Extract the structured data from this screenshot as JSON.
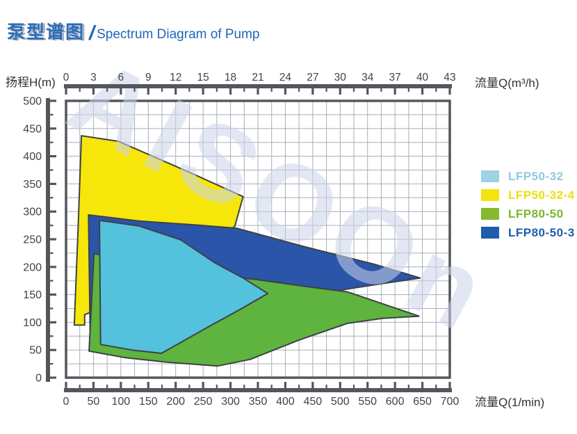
{
  "title": {
    "zh": "泵型谱图",
    "slash": "/",
    "en": "Spectrum Diagram of Pump"
  },
  "axes": {
    "left_label": "扬程H(m)",
    "top_label": "流量Q(m³/h)",
    "bottom_label": "流量Q(1/min)",
    "top_ticks": [
      "0",
      "3",
      "6",
      "9",
      "12",
      "15",
      "18",
      "21",
      "24",
      "27",
      "30",
      "34",
      "37",
      "40",
      "43"
    ],
    "bottom_ticks": [
      "0",
      "50",
      "100",
      "150",
      "200",
      "250",
      "300",
      "350",
      "400",
      "450",
      "500",
      "550",
      "600",
      "650",
      "700"
    ],
    "left_ticks": [
      "500",
      "450",
      "400",
      "350",
      "300",
      "250",
      "200",
      "150",
      "100",
      "50",
      "0"
    ]
  },
  "watermark": {
    "text": "AISOOn",
    "color": "#ccd5ea"
  },
  "legend": {
    "items": [
      {
        "label": "LFP50-32",
        "color": "#9fd2e2",
        "text_color": "#8ecadd"
      },
      {
        "label": "LFP50-32-4",
        "color": "#f4e40b",
        "text_color": "#ece00a"
      },
      {
        "label": "LFP80-50",
        "color": "#86ba2e",
        "text_color": "#7cb62e"
      },
      {
        "label": "LFP80-50-3",
        "color": "#1f5dad",
        "text_color": "#1f5dad"
      }
    ]
  },
  "chart_data": {
    "type": "area",
    "subtype": "pump-operating-region-field",
    "title": "泵型谱图 / Spectrum Diagram of Pump",
    "x_axis_bottom": {
      "label": "流量Q(1/min)",
      "range": [
        0,
        700
      ],
      "tick_step": 50,
      "minor_step": 25
    },
    "x_axis_top": {
      "label": "流量Q(m³/h)",
      "tick_labels": [
        0,
        3,
        6,
        9,
        12,
        15,
        18,
        21,
        24,
        27,
        30,
        34,
        37,
        40,
        43
      ]
    },
    "y_axis": {
      "label": "扬程H(m)",
      "range": [
        0,
        500
      ],
      "tick_step": 50,
      "minor_step": 25
    },
    "grid": {
      "on": true,
      "x_step": 25,
      "y_step": 25
    },
    "legend_position": "right",
    "note": "Each series is a closed operating-region polygon; vertices in [Q l/min, H m]; draw order bottom-to-top",
    "series": [
      {
        "name": "LFP50-32-4",
        "color": "#f6e60a",
        "vertices": [
          [
            28,
            437
          ],
          [
            95,
            427
          ],
          [
            165,
            397
          ],
          [
            234,
            367
          ],
          [
            323,
            327
          ],
          [
            308,
            274
          ],
          [
            260,
            230
          ],
          [
            196,
            186
          ],
          [
            133,
            148
          ],
          [
            82,
            119
          ],
          [
            42,
            117
          ],
          [
            34,
            114
          ],
          [
            34,
            95
          ],
          [
            15,
            95
          ],
          [
            22,
            268
          ]
        ]
      },
      {
        "name": "LFP80-50-3",
        "color": "#2a55a8",
        "vertices": [
          [
            41,
            294
          ],
          [
            133,
            283
          ],
          [
            234,
            276
          ],
          [
            311,
            270
          ],
          [
            437,
            236
          ],
          [
            562,
            205
          ],
          [
            646,
            180
          ],
          [
            577,
            170
          ],
          [
            513,
            160
          ],
          [
            425,
            144
          ],
          [
            323,
            127
          ],
          [
            196,
            102
          ],
          [
            82,
            82
          ],
          [
            44,
            77
          ]
        ]
      },
      {
        "name": "LFP80-50",
        "color": "#5eb43e",
        "vertices": [
          [
            51,
            224
          ],
          [
            196,
            195
          ],
          [
            349,
            177
          ],
          [
            450,
            163
          ],
          [
            513,
            155
          ],
          [
            644,
            111
          ],
          [
            577,
            107
          ],
          [
            513,
            98
          ],
          [
            425,
            68
          ],
          [
            336,
            33
          ],
          [
            276,
            21
          ],
          [
            184,
            28
          ],
          [
            108,
            36
          ],
          [
            42,
            48
          ]
        ]
      },
      {
        "name": "LFP50-32",
        "color": "#54c2dc",
        "vertices": [
          [
            61,
            284
          ],
          [
            133,
            274
          ],
          [
            209,
            249
          ],
          [
            272,
            207
          ],
          [
            323,
            180
          ],
          [
            368,
            152
          ],
          [
            317,
            123
          ],
          [
            260,
            92
          ],
          [
            174,
            44
          ],
          [
            120,
            50
          ],
          [
            63,
            60
          ]
        ]
      }
    ]
  }
}
